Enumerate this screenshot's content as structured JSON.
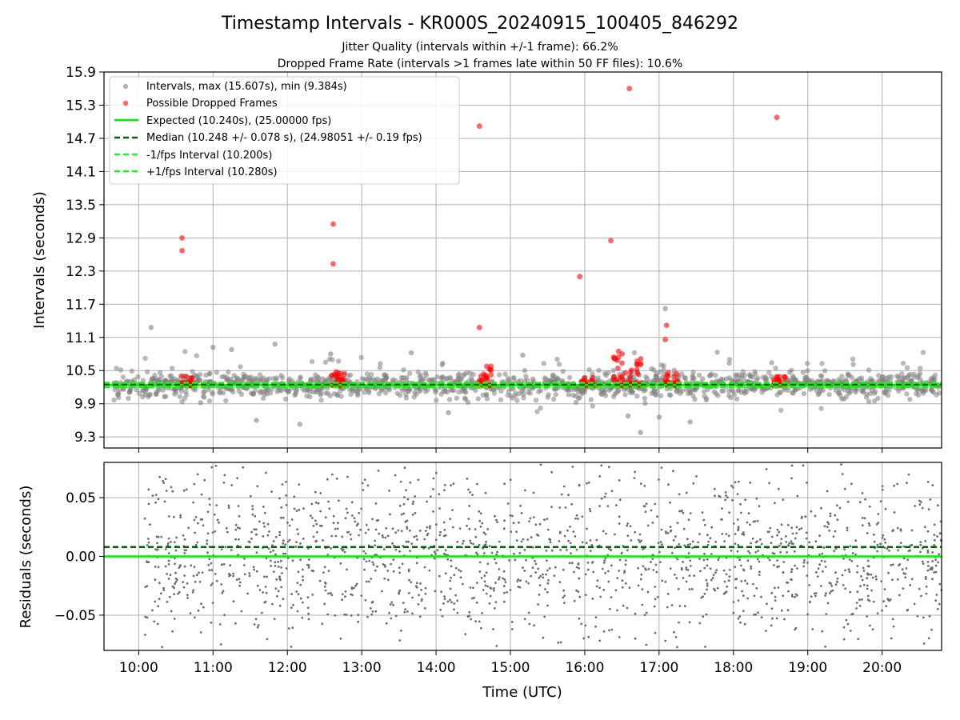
{
  "chart_data": {
    "title": "Timestamp Intervals - KR000S_20240915_100405_846292",
    "subtitle_lines": [
      "Jitter Quality (intervals within +/-1 frame): 66.2%",
      "Dropped Frame Rate (intervals >1 frames late within 50 FF files): 10.6%"
    ],
    "xlabel": "Time (UTC)",
    "x_ticks": [
      "10:00",
      "11:00",
      "12:00",
      "13:00",
      "14:00",
      "15:00",
      "16:00",
      "17:00",
      "18:00",
      "19:00",
      "20:00"
    ],
    "xlim": [
      "09:32",
      "20:48"
    ],
    "grid": true,
    "panels": [
      {
        "name": "intervals",
        "type": "scatter",
        "ylabel": "Intervals (seconds)",
        "ylim": [
          9.1,
          15.9
        ],
        "y_ticks": [
          "9.3",
          "9.9",
          "10.5",
          "11.1",
          "11.7",
          "12.3",
          "12.9",
          "13.5",
          "14.1",
          "14.7",
          "15.3",
          "15.9"
        ],
        "y_tick_values": [
          9.3,
          9.9,
          10.5,
          11.1,
          11.7,
          12.3,
          12.9,
          13.5,
          14.1,
          14.7,
          15.3,
          15.9
        ],
        "legend_position": "top-left",
        "series": [
          {
            "name": "Intervals, max (15.607s), min (9.384s)",
            "kind": "scatter",
            "color": "#808080",
            "cluster": {
              "x_range": [
                "09:40",
                "20:48"
              ],
              "center": 10.24,
              "spread": 0.15
            },
            "outliers": [
              {
                "x": "10:10",
                "y": 11.28
              },
              {
                "x": "10:50",
                "y": 9.92
              },
              {
                "x": "11:00",
                "y": 10.92
              },
              {
                "x": "11:15",
                "y": 10.88
              },
              {
                "x": "11:35",
                "y": 9.6
              },
              {
                "x": "11:50",
                "y": 10.98
              },
              {
                "x": "12:10",
                "y": 9.53
              },
              {
                "x": "12:35",
                "y": 10.8
              },
              {
                "x": "13:40",
                "y": 10.82
              },
              {
                "x": "14:10",
                "y": 9.74
              },
              {
                "x": "15:10",
                "y": 10.78
              },
              {
                "x": "16:35",
                "y": 9.68
              },
              {
                "x": "16:45",
                "y": 9.38
              },
              {
                "x": "17:00",
                "y": 9.66
              },
              {
                "x": "17:05",
                "y": 11.62
              },
              {
                "x": "17:25",
                "y": 9.57
              }
            ]
          },
          {
            "name": "Possible Dropped Frames",
            "kind": "scatter",
            "color": "#ff0000",
            "points": [
              {
                "x": "10:35",
                "y": 12.9
              },
              {
                "x": "10:35",
                "y": 12.67
              },
              {
                "x": "12:37",
                "y": 13.15
              },
              {
                "x": "12:37",
                "y": 12.43
              },
              {
                "x": "14:35",
                "y": 14.92
              },
              {
                "x": "14:35",
                "y": 11.28
              },
              {
                "x": "15:56",
                "y": 12.2
              },
              {
                "x": "16:21",
                "y": 12.85
              },
              {
                "x": "16:36",
                "y": 15.6
              },
              {
                "x": "17:06",
                "y": 11.32
              },
              {
                "x": "17:05",
                "y": 11.06
              },
              {
                "x": "18:35",
                "y": 15.08
              }
            ],
            "clusters": [
              {
                "x_from": "10:34",
                "x_to": "10:44",
                "y_from": 10.23,
                "y_to": 10.42
              },
              {
                "x_from": "12:35",
                "x_to": "12:46",
                "y_from": 10.23,
                "y_to": 10.62
              },
              {
                "x_from": "14:35",
                "x_to": "14:45",
                "y_from": 10.23,
                "y_to": 10.65
              },
              {
                "x_from": "15:57",
                "x_to": "16:07",
                "y_from": 10.23,
                "y_to": 10.38
              },
              {
                "x_from": "16:22",
                "x_to": "16:33",
                "y_from": 10.23,
                "y_to": 10.85
              },
              {
                "x_from": "16:35",
                "x_to": "16:46",
                "y_from": 10.23,
                "y_to": 10.78
              },
              {
                "x_from": "17:04",
                "x_to": "17:15",
                "y_from": 10.23,
                "y_to": 10.5
              },
              {
                "x_from": "18:32",
                "x_to": "18:43",
                "y_from": 10.23,
                "y_to": 10.4
              }
            ]
          },
          {
            "name": "Expected (10.240s), (25.00000 fps)",
            "kind": "hline",
            "value": 10.24,
            "color": "#00ee00",
            "style": "solid"
          },
          {
            "name": "Median (10.248 +/- 0.078 s), (24.98051 +/- 0.19 fps)",
            "kind": "hline",
            "value": 10.248,
            "color": "#006400",
            "style": "dashed"
          },
          {
            "name": "-1/fps Interval (10.200s)",
            "kind": "hline",
            "value": 10.2,
            "color": "#22ee22",
            "style": "dashed"
          },
          {
            "name": "+1/fps Interval (10.280s)",
            "kind": "hline",
            "value": 10.28,
            "color": "#22ee22",
            "style": "dashed"
          }
        ]
      },
      {
        "name": "residuals",
        "type": "scatter",
        "ylabel": "Residuals (seconds)",
        "ylim": [
          -0.08,
          0.08
        ],
        "y_ticks": [
          "−0.05",
          "0.00",
          "0.05"
        ],
        "y_tick_values": [
          -0.05,
          0.0,
          0.05
        ],
        "series": [
          {
            "kind": "scatter",
            "color": "#6e6e6e",
            "cluster": {
              "x_range": [
                "10:05",
                "20:48"
              ],
              "center": 0.0,
              "spread": 0.045
            }
          },
          {
            "kind": "hline",
            "value": 0.0,
            "color": "#00ee00",
            "style": "solid"
          },
          {
            "kind": "hline",
            "value": 0.008,
            "color": "#006400",
            "style": "dashed"
          }
        ]
      }
    ]
  }
}
